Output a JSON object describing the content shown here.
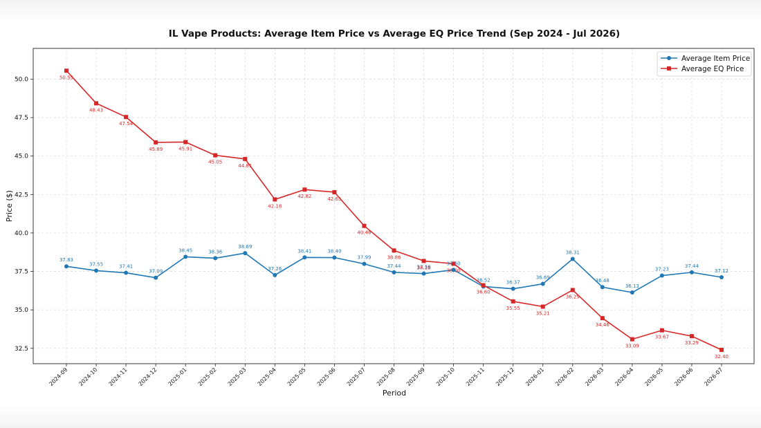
{
  "chart_data": {
    "type": "line",
    "title": "IL Vape Products: Average Item Price vs Average EQ Price Trend (Sep 2024 - Jul 2026)",
    "xlabel": "Period",
    "ylabel": "Price ($)",
    "ylim": [
      31.5,
      52.0
    ],
    "yticks": [
      32.5,
      35.0,
      37.5,
      40.0,
      42.5,
      45.0,
      47.5,
      50.0
    ],
    "grid": true,
    "legend_position": "top-right",
    "categories": [
      "2024-09",
      "2024-10",
      "2024-11",
      "2024-12",
      "2025-01",
      "2025-02",
      "2025-03",
      "2025-04",
      "2025-05",
      "2025-06",
      "2025-07",
      "2025-08",
      "2025-09",
      "2025-10",
      "2025-11",
      "2025-12",
      "2026-01",
      "2026-02",
      "2026-03",
      "2026-04",
      "2026-05",
      "2026-06",
      "2026-07"
    ],
    "series": [
      {
        "name": "Average Item Price",
        "color": "#1f77b4",
        "marker": "circle",
        "values": [
          37.83,
          37.55,
          37.41,
          37.09,
          38.45,
          38.36,
          38.69,
          37.26,
          38.41,
          38.4,
          37.99,
          37.44,
          37.36,
          37.6,
          36.52,
          36.37,
          36.69,
          38.31,
          36.48,
          36.13,
          37.23,
          37.44,
          37.12
        ],
        "labels": [
          "37.83",
          "37.55",
          "37.41",
          "37.09",
          "38.45",
          "38.36",
          "38.69",
          "37.26",
          "38.41",
          "38.40",
          "37.99",
          "37.44",
          "37.36",
          "37.60",
          "36.52",
          "36.37",
          "36.69",
          "38.31",
          "36.48",
          "36.13",
          "37.23",
          "37.44",
          "37.12"
        ]
      },
      {
        "name": "Average EQ Price",
        "color": "#d62728",
        "marker": "square",
        "values": [
          50.55,
          48.43,
          47.54,
          45.89,
          45.91,
          45.05,
          44.81,
          42.18,
          42.82,
          42.65,
          40.46,
          38.86,
          38.18,
          38.0,
          36.6,
          35.55,
          35.21,
          36.29,
          34.46,
          33.09,
          33.67,
          33.29,
          32.4
        ],
        "labels": [
          "50.55",
          "48.43",
          "47.54",
          "45.89",
          "45.91",
          "45.05",
          "44.81",
          "42.18",
          "42.82",
          "42.65",
          "40.46",
          "38.86",
          "38.18",
          "38.00",
          "36.60",
          "35.55",
          "35.21",
          "36.29",
          "34.46",
          "33.09",
          "33.67",
          "33.29",
          "32.40"
        ]
      }
    ]
  }
}
